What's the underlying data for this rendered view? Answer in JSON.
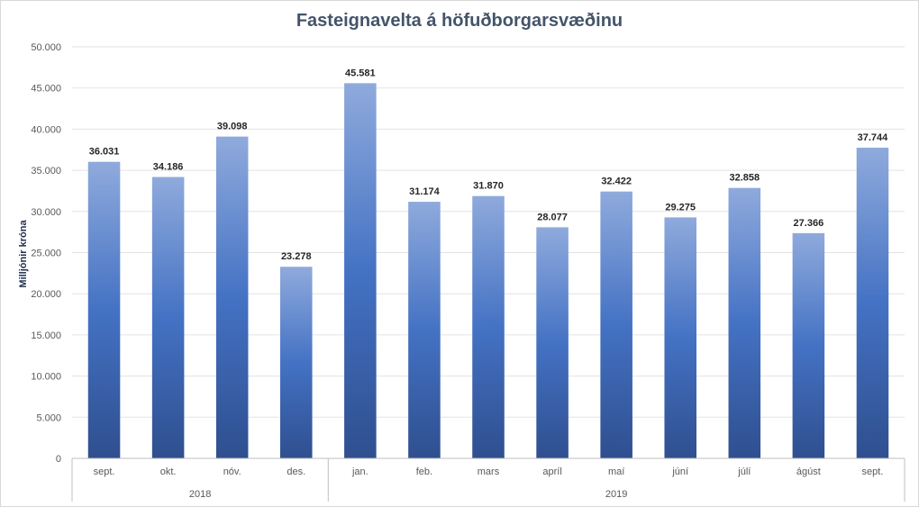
{
  "chart_data": {
    "type": "bar",
    "title": "Fasteignavelta á höfuðborgarsvæðinu",
    "ylabel": "Milljónir króna",
    "xlabel": "",
    "ylim": [
      0,
      50000
    ],
    "y_ticks": [
      "0",
      "5.000",
      "10.000",
      "15.000",
      "20.000",
      "25.000",
      "30.000",
      "35.000",
      "40.000",
      "45.000",
      "50.000"
    ],
    "categories": [
      "sept.",
      "okt.",
      "nóv.",
      "des.",
      "jan.",
      "feb.",
      "mars",
      "apríl",
      "maí",
      "júní",
      "júlí",
      "ágúst",
      "sept."
    ],
    "values": [
      36031,
      34186,
      39098,
      23278,
      45581,
      31174,
      31870,
      28077,
      32422,
      29275,
      32858,
      27366,
      37744
    ],
    "value_labels": [
      "36.031",
      "34.186",
      "39.098",
      "23.278",
      "45.581",
      "31.174",
      "31.870",
      "28.077",
      "32.422",
      "29.275",
      "32.858",
      "27.366",
      "37.744"
    ],
    "groups": [
      {
        "label": "2018",
        "start": 0,
        "end": 3
      },
      {
        "label": "2019",
        "start": 4,
        "end": 12
      }
    ],
    "grid": true,
    "legend": "none",
    "colors": {
      "bar_top": "#8faadc",
      "bar_mid": "#4472c4",
      "bar_bottom": "#2f4f8f",
      "grid": "#e3e3e3",
      "axis": "#bfbfbf"
    }
  }
}
